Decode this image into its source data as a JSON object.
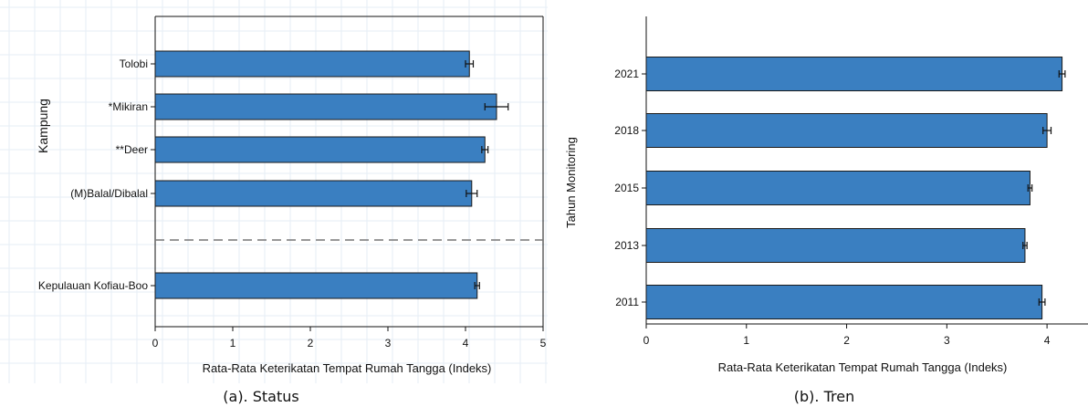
{
  "colors": {
    "bar": "#3a7fc1",
    "bar_edge": "#1a1a1a",
    "grid": "#e6eef6",
    "dash": "#777777"
  },
  "chart_data": [
    {
      "type": "bar",
      "orientation": "horizontal",
      "caption": "(a). Status",
      "xlabel": "Rata-Rata Keterikatan Tempat Rumah Tangga (Indeks)",
      "ylabel": "Kampung",
      "xlim": [
        0,
        5
      ],
      "xticks": [
        "0",
        "1",
        "2",
        "3",
        "4",
        "5"
      ],
      "categories": [
        "Tolobi",
        "*Mikiran",
        "**Deer",
        "(M)Balal/Dibalal",
        "Kepulauan Kofiau-Boo"
      ],
      "values": [
        4.05,
        4.4,
        4.25,
        4.08,
        4.15
      ],
      "errors": [
        0.05,
        0.15,
        0.04,
        0.07,
        0.03
      ],
      "separator_after": "(M)Balal/Dibalal",
      "grid": false
    },
    {
      "type": "bar",
      "orientation": "horizontal",
      "caption": "(b). Tren",
      "xlabel": "Rata-Rata Keterikatan Tempat Rumah Tangga (Indeks)",
      "ylabel": "Tahun Monitoring",
      "xlim": [
        0,
        4.5
      ],
      "xticks": [
        "0",
        "1",
        "2",
        "3",
        "4"
      ],
      "categories": [
        "2021",
        "2018",
        "2015",
        "2013",
        "2011"
      ],
      "values": [
        4.15,
        4.0,
        3.83,
        3.78,
        3.95
      ],
      "errors": [
        0.03,
        0.04,
        0.02,
        0.02,
        0.03
      ],
      "grid": false
    }
  ]
}
